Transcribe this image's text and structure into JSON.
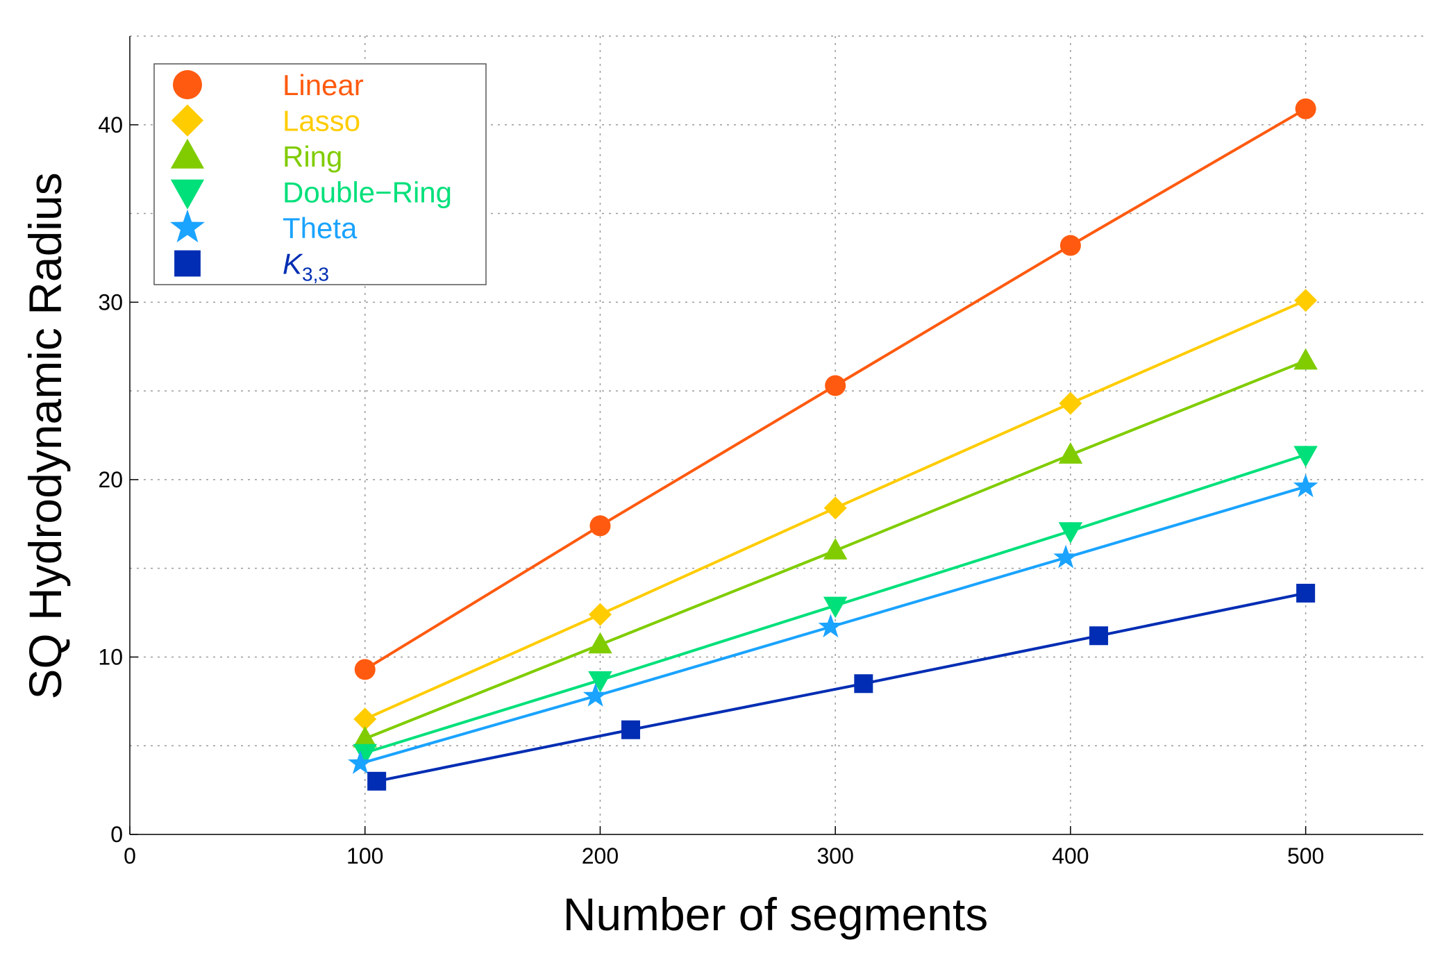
{
  "chart_data": {
    "type": "line",
    "title": "",
    "xlabel": "Number of segments",
    "ylabel": "SQ Hydrodynamic Radius",
    "xlim": [
      0,
      550
    ],
    "ylim": [
      0,
      45
    ],
    "xticks": [
      0,
      100,
      200,
      300,
      400,
      500
    ],
    "yticks": [
      0,
      10,
      20,
      30,
      40
    ],
    "xtick_labels": [
      "0",
      "100",
      "200",
      "300",
      "400",
      "500"
    ],
    "ytick_labels": [
      "0",
      "10",
      "20",
      "30",
      "40"
    ],
    "grid": true,
    "legend_position": "top-left",
    "series": [
      {
        "name": "Linear",
        "label_main": "Linear",
        "label_sub": "",
        "italic": false,
        "color": "#ff5a0f",
        "marker": "circle",
        "points": [
          [
            100,
            9.3
          ],
          [
            200,
            17.4
          ],
          [
            300,
            25.3
          ],
          [
            400,
            33.2
          ],
          [
            500,
            40.9
          ]
        ]
      },
      {
        "name": "Lasso",
        "label_main": "Lasso",
        "label_sub": "",
        "italic": false,
        "color": "#ffcc00",
        "marker": "diamond",
        "points": [
          [
            100,
            6.5
          ],
          [
            200,
            12.4
          ],
          [
            300,
            18.4
          ],
          [
            400,
            24.3
          ],
          [
            500,
            30.1
          ]
        ]
      },
      {
        "name": "Ring",
        "label_main": "Ring",
        "label_sub": "",
        "italic": false,
        "color": "#80cc00",
        "marker": "triangle-up",
        "points": [
          [
            100,
            5.4
          ],
          [
            200,
            10.7
          ],
          [
            300,
            16.0
          ],
          [
            400,
            21.4
          ],
          [
            500,
            26.7
          ]
        ]
      },
      {
        "name": "Double−Ring",
        "label_main": "Double−Ring",
        "label_sub": "",
        "italic": false,
        "color": "#00e07a",
        "marker": "triangle-down",
        "points": [
          [
            100,
            4.6
          ],
          [
            200,
            8.7
          ],
          [
            300,
            12.9
          ],
          [
            400,
            17.1
          ],
          [
            500,
            21.4
          ]
        ]
      },
      {
        "name": "Theta",
        "label_main": "Theta",
        "label_sub": "",
        "italic": false,
        "color": "#1aa3ff",
        "marker": "star",
        "points": [
          [
            98,
            4.0
          ],
          [
            198,
            7.8
          ],
          [
            298,
            11.7
          ],
          [
            398,
            15.6
          ],
          [
            500,
            19.6
          ]
        ]
      },
      {
        "name": "K3,3",
        "label_main": "K",
        "label_sub": "3,3",
        "italic": true,
        "color": "#002db3",
        "marker": "square",
        "points": [
          [
            105,
            3.0
          ],
          [
            213,
            5.9
          ],
          [
            312,
            8.5
          ],
          [
            412,
            11.2
          ],
          [
            500,
            13.6
          ]
        ]
      }
    ]
  }
}
